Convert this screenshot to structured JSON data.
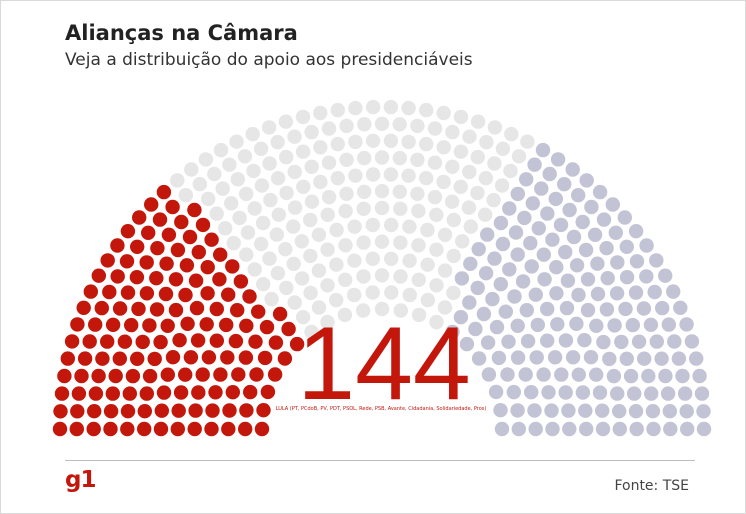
{
  "header": {
    "title": "Alianças na Câmara",
    "subtitle": "Veja a distribuição do apoio aos presidenciáveis"
  },
  "footer": {
    "logo": "g1",
    "source": "Fonte: TSE"
  },
  "chart_data": {
    "type": "parliament",
    "total_seats": 513,
    "highlight": {
      "value": "144",
      "caption": "LULA (PT, PCdoB, PV, PDT, PSOL, Rede, PSB, Avante, Cidadania, Solidariedade, Pros)"
    },
    "segments": [
      {
        "seats": 144,
        "color": "#c4170c"
      },
      {
        "seats": 190,
        "color": "#e6e6e6"
      },
      {
        "seats": 179,
        "color": "#c3c3d6"
      }
    ]
  }
}
